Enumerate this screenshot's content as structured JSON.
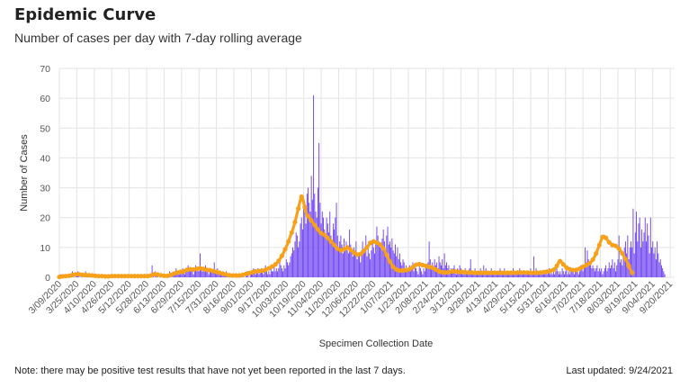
{
  "header": {
    "title": "Epidemic Curve",
    "subtitle": "Number of cases per day with 7-day rolling average"
  },
  "footer": {
    "note": "Note: there may be positive test results that have not yet been reported in the last 7 days.",
    "last_updated": "Last updated: 9/24/2021"
  },
  "colors": {
    "bars": "#6a3df0",
    "rolling_average": "#f7a11a",
    "grid": "#e3e3e3"
  },
  "chart_data": {
    "type": "bar",
    "xlabel": "Specimen Collection Date",
    "ylabel": "Number of Cases",
    "ylim": [
      0,
      70
    ],
    "yticks": [
      0,
      10,
      20,
      30,
      40,
      50,
      60,
      70
    ],
    "grid": true,
    "x_range": [
      "3/09/2020",
      "9/24/2021"
    ],
    "x_tick_labels": [
      "3/09/2020",
      "3/25/2020",
      "4/10/2020",
      "4/26/2020",
      "5/12/2020",
      "5/28/2020",
      "6/13/2020",
      "6/29/2020",
      "7/15/2020",
      "7/31/2020",
      "8/16/2020",
      "9/01/2020",
      "9/17/2020",
      "10/03/2020",
      "10/19/2020",
      "11/04/2020",
      "11/20/2020",
      "12/06/2020",
      "12/22/2020",
      "1/07/2021",
      "1/23/2021",
      "2/08/2021",
      "2/24/2021",
      "3/12/2021",
      "3/28/2021",
      "4/13/2021",
      "4/29/2021",
      "5/15/2021",
      "5/31/2021",
      "6/16/2021",
      "7/02/2021",
      "7/18/2021",
      "8/03/2021",
      "8/19/2021",
      "9/04/2021",
      "9/20/2021"
    ],
    "series": [
      {
        "type": "bar",
        "daily_values_from": "3/09/2020",
        "values": [
          0,
          1,
          0,
          0,
          1,
          0,
          0,
          1,
          1,
          0,
          0,
          1,
          2,
          1,
          0,
          1,
          1,
          2,
          1,
          0,
          1,
          1,
          0,
          1,
          2,
          1,
          1,
          0,
          1,
          1,
          0,
          1,
          0,
          1,
          1,
          0,
          0,
          1,
          0,
          1,
          0,
          0,
          1,
          0,
          0,
          1,
          0,
          0,
          1,
          1,
          0,
          0,
          1,
          0,
          1,
          0,
          1,
          1,
          0,
          0,
          1,
          0,
          0,
          1,
          0,
          1,
          0,
          0,
          1,
          1,
          0,
          0,
          1,
          0,
          0,
          1,
          0,
          1,
          1,
          0,
          0,
          1,
          0,
          0,
          1,
          4,
          1,
          0,
          2,
          1,
          1,
          0,
          1,
          1,
          0,
          0,
          1,
          0,
          1,
          0,
          1,
          2,
          1,
          0,
          1,
          1,
          2,
          3,
          1,
          2,
          1,
          2,
          1,
          3,
          2,
          1,
          2,
          3,
          4,
          2,
          3,
          3,
          2,
          1,
          3,
          4,
          2,
          3,
          2,
          8,
          3,
          2,
          3,
          2,
          4,
          3,
          2,
          1,
          2,
          3,
          2,
          2,
          5,
          2,
          1,
          3,
          2,
          1,
          2,
          1,
          2,
          1,
          1,
          2,
          1,
          0,
          1,
          1,
          0,
          1,
          1,
          0,
          1,
          0,
          1,
          0,
          1,
          1,
          0,
          1,
          0,
          1,
          2,
          1,
          0,
          1,
          2,
          1,
          3,
          2,
          1,
          2,
          3,
          1,
          2,
          3,
          2,
          1,
          2,
          4,
          3,
          1,
          2,
          1,
          3,
          2,
          2,
          4,
          2,
          3,
          2,
          3,
          5,
          4,
          3,
          2,
          4,
          3,
          6,
          5,
          4,
          5,
          7,
          8,
          10,
          9,
          12,
          15,
          14,
          10,
          12,
          18,
          20,
          16,
          25,
          22,
          18,
          28,
          30,
          25,
          22,
          34,
          26,
          61,
          28,
          22,
          20,
          30,
          45,
          25,
          18,
          22,
          20,
          16,
          14,
          20,
          18,
          15,
          22,
          14,
          12,
          18,
          16,
          20,
          25,
          14,
          10,
          12,
          14,
          11,
          8,
          13,
          10,
          12,
          9,
          8,
          16,
          11,
          9,
          7,
          10,
          8,
          12,
          6,
          7,
          8,
          5,
          9,
          12,
          8,
          10,
          14,
          7,
          11,
          8,
          6,
          9,
          12,
          10,
          8,
          12,
          17,
          14,
          12,
          10,
          11,
          13,
          16,
          12,
          9,
          14,
          17,
          11,
          12,
          10,
          13,
          9,
          8,
          11,
          7,
          10,
          6,
          8,
          5,
          4,
          6,
          5,
          3,
          4,
          2,
          3,
          4,
          2,
          3,
          5,
          2,
          4,
          3,
          2,
          1,
          4,
          3,
          2,
          1,
          3,
          2,
          4,
          3,
          5,
          12,
          6,
          4,
          5,
          3,
          6,
          4,
          5,
          3,
          7,
          5,
          4,
          6,
          3,
          8,
          4,
          5,
          3,
          4,
          2,
          3,
          2,
          3,
          4,
          2,
          1,
          3,
          2,
          4,
          3,
          2,
          1,
          2,
          3,
          2,
          1,
          2,
          3,
          6,
          2,
          1,
          2,
          3,
          2,
          1,
          2,
          1,
          3,
          2,
          1,
          4,
          2,
          3,
          2,
          1,
          2,
          1,
          3,
          2,
          1,
          2,
          1,
          2,
          1,
          2,
          3,
          1,
          2,
          1,
          3,
          2,
          1,
          2,
          1,
          2,
          1,
          2,
          3,
          1,
          2,
          1,
          2,
          1,
          3,
          2,
          1,
          2,
          2,
          1,
          2,
          1,
          2,
          1,
          3,
          2,
          1,
          7,
          2,
          3,
          1,
          2,
          1,
          2,
          1,
          1,
          2,
          1,
          2,
          1,
          2,
          3,
          1,
          2,
          1,
          2,
          1,
          2,
          3,
          2,
          1,
          2,
          1,
          3,
          2,
          1,
          2,
          3,
          1,
          2,
          1,
          3,
          2,
          2,
          1,
          2,
          3,
          2,
          1,
          2,
          4,
          3,
          2,
          3,
          10,
          5,
          9,
          6,
          4,
          5,
          3,
          4,
          3,
          2,
          3,
          4,
          2,
          3,
          2,
          3,
          1,
          2,
          3,
          4,
          2,
          3,
          5,
          3,
          4,
          6,
          3,
          5,
          2,
          4,
          6,
          14,
          5,
          6,
          4,
          8,
          10,
          12,
          8,
          14,
          6,
          10,
          12,
          10,
          23,
          8,
          15,
          22,
          12,
          18,
          20,
          10,
          16,
          12,
          15,
          20,
          12,
          18,
          14,
          8,
          20,
          10,
          12,
          8,
          10,
          6,
          12,
          8,
          5,
          6,
          4,
          3,
          2,
          1
        ]
      },
      {
        "type": "line",
        "name": "7-day rolling average",
        "daily_values_from": "3/09/2020",
        "values": [
          0.1,
          0.2,
          0.3,
          0.3,
          0.4,
          0.4,
          0.4,
          0.5,
          0.5,
          0.5,
          0.6,
          0.7,
          0.8,
          0.9,
          1.0,
          1.0,
          1.0,
          1.0,
          1.0,
          0.9,
          0.9,
          0.8,
          0.8,
          0.8,
          0.8,
          0.8,
          0.8,
          0.7,
          0.7,
          0.7,
          0.6,
          0.6,
          0.5,
          0.5,
          0.5,
          0.4,
          0.4,
          0.4,
          0.4,
          0.4,
          0.4,
          0.4,
          0.3,
          0.3,
          0.3,
          0.3,
          0.3,
          0.3,
          0.4,
          0.4,
          0.4,
          0.4,
          0.4,
          0.4,
          0.4,
          0.4,
          0.4,
          0.4,
          0.4,
          0.4,
          0.4,
          0.4,
          0.4,
          0.4,
          0.4,
          0.4,
          0.4,
          0.4,
          0.4,
          0.4,
          0.4,
          0.4,
          0.4,
          0.4,
          0.4,
          0.4,
          0.4,
          0.4,
          0.4,
          0.4,
          0.4,
          0.4,
          0.4,
          0.4,
          0.6,
          1.0,
          1.0,
          1.0,
          1.0,
          1.0,
          0.9,
          0.9,
          0.8,
          0.7,
          0.6,
          0.5,
          0.5,
          0.5,
          0.5,
          0.5,
          0.6,
          0.7,
          0.8,
          0.9,
          1.0,
          1.2,
          1.4,
          1.5,
          1.6,
          1.7,
          1.7,
          1.8,
          1.8,
          1.9,
          2.0,
          2.1,
          2.3,
          2.5,
          2.6,
          2.6,
          2.7,
          2.7,
          2.6,
          2.6,
          2.6,
          2.7,
          2.8,
          3.1,
          3.1,
          3.0,
          3.0,
          2.9,
          2.8,
          2.7,
          2.6,
          2.5,
          2.5,
          2.4,
          2.4,
          2.3,
          2.2,
          2.1,
          2.0,
          1.9,
          1.8,
          1.7,
          1.6,
          1.5,
          1.4,
          1.3,
          1.2,
          1.1,
          1.0,
          0.9,
          0.8,
          0.7,
          0.7,
          0.6,
          0.6,
          0.6,
          0.6,
          0.6,
          0.6,
          0.6,
          0.6,
          0.6,
          0.6,
          0.7,
          0.8,
          0.9,
          1.0,
          1.1,
          1.2,
          1.3,
          1.4,
          1.5,
          1.6,
          1.7,
          1.8,
          1.9,
          2.0,
          2.0,
          2.0,
          2.1,
          2.1,
          2.2,
          2.2,
          2.3,
          2.4,
          2.5,
          2.6,
          2.8,
          3.0,
          3.2,
          3.4,
          3.6,
          3.8,
          4.0,
          4.3,
          4.6,
          5.0,
          5.5,
          6.0,
          6.6,
          7.2,
          7.9,
          8.6,
          9.4,
          10.2,
          11.0,
          12.0,
          13.0,
          14.0,
          15.0,
          16.0,
          17.2,
          18.5,
          20.0,
          21.5,
          23.0,
          24.5,
          26.0,
          27.0,
          26.5,
          25.0,
          23.5,
          22.0,
          21.0,
          20.5,
          20.0,
          19.5,
          19.0,
          18.5,
          18.0,
          17.5,
          17.0,
          16.5,
          16.0,
          15.5,
          15.0,
          14.8,
          14.6,
          14.4,
          14.2,
          14.0,
          13.6,
          13.2,
          12.8,
          12.4,
          12.0,
          11.6,
          11.2,
          10.8,
          10.4,
          10.0,
          9.6,
          9.4,
          9.2,
          9.0,
          9.0,
          9.2,
          9.4,
          9.6,
          9.8,
          10.0,
          9.8,
          9.5,
          9.2,
          8.9,
          8.6,
          8.3,
          8.0,
          7.8,
          7.6,
          7.5,
          7.6,
          7.8,
          8.0,
          8.4,
          8.8,
          9.2,
          9.6,
          10.0,
          10.5,
          11.0,
          11.5,
          11.8,
          12.0,
          12.0,
          11.9,
          11.8,
          11.6,
          11.4,
          11.2,
          11.0,
          10.6,
          10.2,
          9.6,
          9.0,
          8.3,
          7.5,
          6.8,
          6.0,
          5.3,
          4.6,
          4.0,
          3.5,
          3.1,
          2.8,
          2.6,
          2.4,
          2.3,
          2.2,
          2.2,
          2.2,
          2.3,
          2.3,
          2.4,
          2.4,
          2.5,
          2.6,
          2.7,
          2.9,
          3.1,
          3.4,
          3.7,
          4.0,
          4.2,
          4.3,
          4.4,
          4.4,
          4.3,
          4.2,
          4.1,
          4.0,
          3.9,
          3.8,
          3.7,
          3.6,
          3.5,
          3.4,
          3.3,
          3.2,
          3.0,
          2.8,
          2.6,
          2.4,
          2.2,
          2.0,
          1.9,
          1.8,
          1.7,
          1.6,
          1.6,
          1.6,
          1.6,
          1.6,
          1.7,
          1.8,
          1.9,
          2.0,
          2.0,
          2.0,
          1.9,
          1.9,
          1.8,
          1.8,
          1.8,
          1.8,
          1.8,
          1.8,
          1.7,
          1.7,
          1.7,
          1.6,
          1.6,
          1.6,
          1.6,
          1.6,
          1.6,
          1.6,
          1.5,
          1.5,
          1.5,
          1.5,
          1.5,
          1.5,
          1.5,
          1.5,
          1.5,
          1.5,
          1.5,
          1.5,
          1.5,
          1.5,
          1.5,
          1.5,
          1.5,
          1.5,
          1.5,
          1.5,
          1.5,
          1.5,
          1.5,
          1.5,
          1.5,
          1.5,
          1.5,
          1.5,
          1.5,
          1.5,
          1.5,
          1.5,
          1.5,
          1.5,
          1.5,
          1.5,
          1.5,
          1.5,
          1.6,
          1.6,
          1.6,
          1.6,
          1.6,
          1.6,
          1.6,
          1.6,
          1.6,
          1.6,
          1.6,
          1.5,
          1.5,
          1.5,
          1.5,
          1.5,
          1.5,
          1.5,
          1.5,
          1.5,
          1.5,
          1.5,
          1.6,
          1.6,
          1.7,
          1.7,
          1.8,
          1.8,
          1.9,
          1.9,
          2.0,
          2.1,
          2.2,
          2.3,
          2.5,
          2.8,
          3.2,
          3.8,
          4.5,
          5.2,
          5.4,
          5.2,
          4.8,
          4.3,
          3.9,
          3.5,
          3.2,
          3.0,
          2.8,
          2.7,
          2.6,
          2.5,
          2.4,
          2.4,
          2.4,
          2.5,
          2.6,
          2.7,
          2.9,
          3.1,
          3.3,
          3.5,
          3.7,
          3.9,
          4.1,
          4.3,
          4.5,
          4.7,
          5.0,
          5.4,
          5.9,
          6.5,
          7.2,
          8.0,
          8.9,
          9.8,
          10.8,
          11.8,
          12.8,
          13.5,
          13.8,
          13.6,
          13.2,
          12.7,
          12.2,
          11.7,
          11.3,
          11.0,
          10.8,
          10.7,
          10.6,
          10.5,
          10.3,
          10.0,
          9.6,
          9.1,
          8.6,
          8.0,
          7.4,
          6.8,
          6.1,
          5.4,
          4.6,
          3.8,
          3.0,
          2.2,
          1.5
        ]
      }
    ]
  }
}
